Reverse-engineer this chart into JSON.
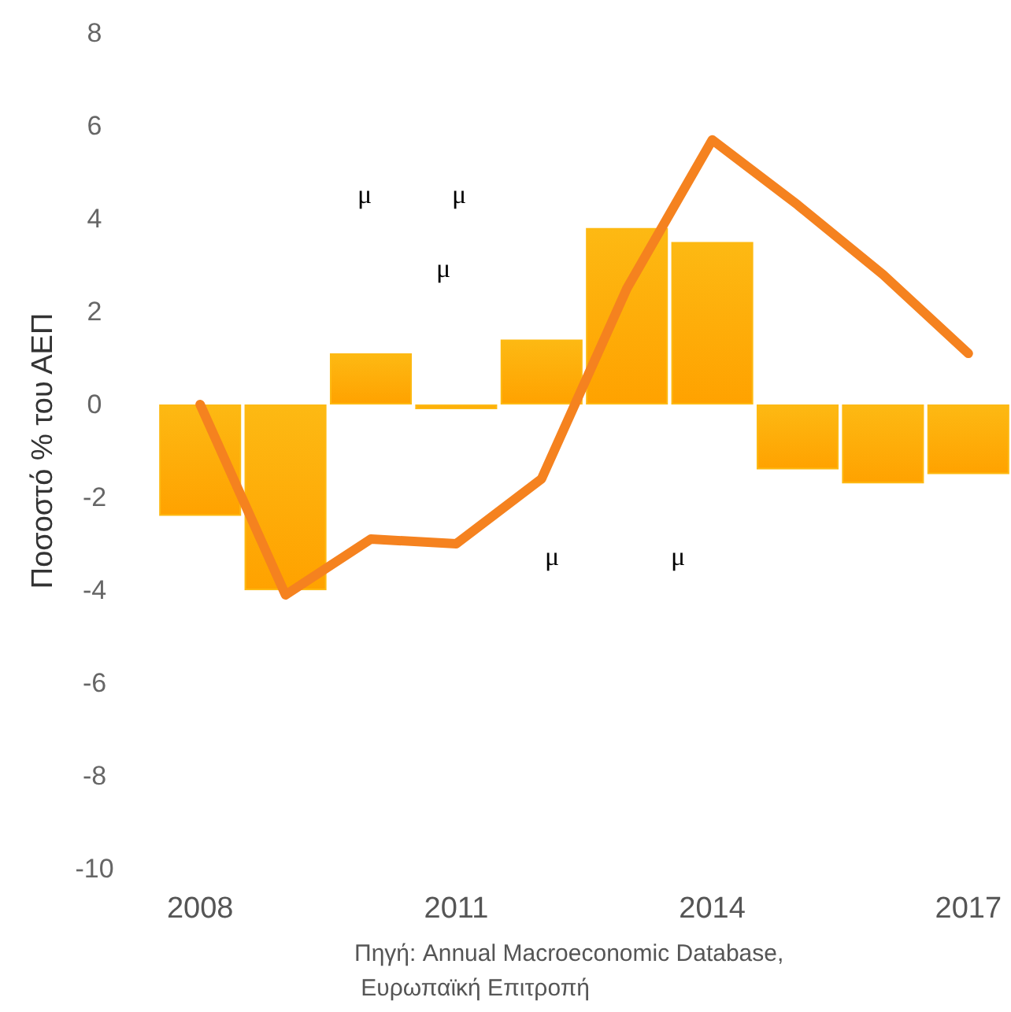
{
  "chart_data": {
    "type": "bar",
    "ylabel": "Ποσοστό % του ΑΕΠ",
    "annotations": [
      "μ",
      "μ",
      "μ",
      "μ",
      "μ",
      "Πηγή: Annual Macroeconomic Database, Ευρωπαϊκή Επιτροπή"
    ],
    "categories": [
      "2008",
      null,
      null,
      "2011",
      null,
      null,
      "2014",
      null,
      null,
      "2017"
    ],
    "series": [
      {
        "color": "#fdb913",
        "values": [
          -2.4,
          -4.0,
          1.1,
          -0.1,
          1.4,
          3.8,
          3.5,
          -1.4,
          -1.7,
          -1.5
        ]
      },
      {
        "type": "line",
        "color": "#f5821f",
        "values": [
          0,
          -4.1,
          -2.9,
          -3.0,
          -1.6,
          2.5,
          5.7,
          4.3,
          2.8,
          1.1
        ]
      }
    ],
    "ylim": [
      -10,
      8
    ],
    "yticks": [
      -10,
      -8,
      -6,
      -4,
      -2,
      0,
      2,
      4,
      6,
      8
    ],
    "grid": false,
    "marker": "none",
    "line_style": "solid"
  }
}
